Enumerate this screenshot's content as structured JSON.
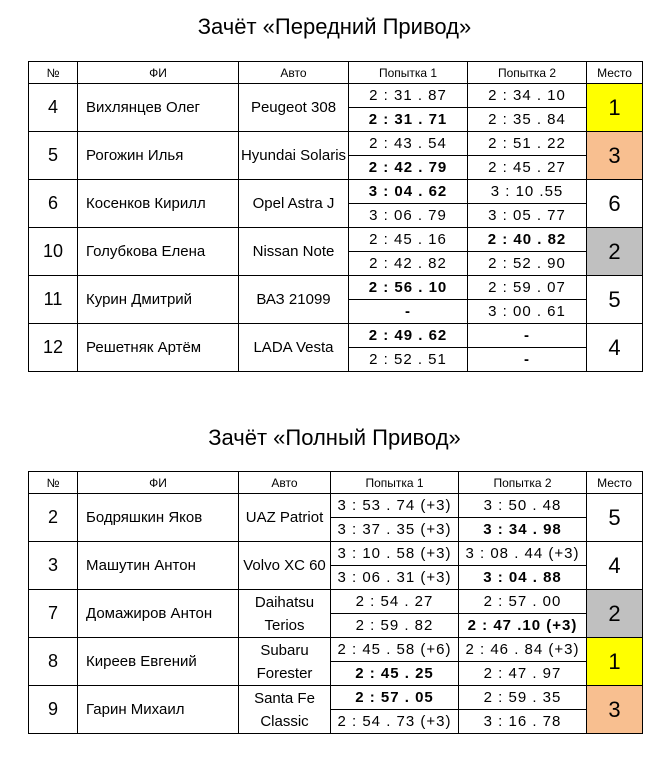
{
  "headers": {
    "num": "№",
    "name": "ФИ",
    "car": "Авто",
    "try1": "Попытка 1",
    "try2": "Попытка 2",
    "place": "Место"
  },
  "place_colors": {
    "1": "#ffff00",
    "2": "#c0c0c0",
    "3": "#f8bf90"
  },
  "tables": [
    {
      "title": "Зачёт «Передний Привод»",
      "rows": [
        {
          "num": "4",
          "name": "Вихлянцев Олег",
          "car": "Peugeot 308",
          "try1": [
            {
              "t": "2 : 31 . 87",
              "best": false
            },
            {
              "t": "2 : 31 . 71",
              "best": true
            }
          ],
          "try2": [
            {
              "t": "2 : 34 . 10",
              "best": false
            },
            {
              "t": "2 : 35 . 84",
              "best": false
            }
          ],
          "place": "1"
        },
        {
          "num": "5",
          "name": "Рогожин Илья",
          "car": "Hyundai Solaris",
          "try1": [
            {
              "t": "2 : 43 . 54",
              "best": false
            },
            {
              "t": "2 : 42 . 79",
              "best": true
            }
          ],
          "try2": [
            {
              "t": "2 : 51 . 22",
              "best": false
            },
            {
              "t": "2 : 45 . 27",
              "best": false
            }
          ],
          "place": "3"
        },
        {
          "num": "6",
          "name": "Косенков Кирилл",
          "car": "Opel Astra J",
          "try1": [
            {
              "t": "3 : 04 . 62",
              "best": true
            },
            {
              "t": "3 : 06 . 79",
              "best": false
            }
          ],
          "try2": [
            {
              "t": "3 : 10 .55",
              "best": false
            },
            {
              "t": "3 : 05 . 77",
              "best": false
            }
          ],
          "place": "6"
        },
        {
          "num": "10",
          "name": "Голубкова Елена",
          "car": "Nissan Note",
          "try1": [
            {
              "t": "2 : 45 . 16",
              "best": false
            },
            {
              "t": "2 : 42 . 82",
              "best": false
            }
          ],
          "try2": [
            {
              "t": "2 : 40 . 82",
              "best": true
            },
            {
              "t": "2 : 52 . 90",
              "best": false
            }
          ],
          "place": "2"
        },
        {
          "num": "11",
          "name": "Курин Дмитрий",
          "car": "ВАЗ 21099",
          "try1": [
            {
              "t": "2 : 56 . 10",
              "best": true
            },
            {
              "t": "-",
              "best": true
            }
          ],
          "try2": [
            {
              "t": "2 : 59 . 07",
              "best": false
            },
            {
              "t": "3 : 00 . 61",
              "best": false
            }
          ],
          "place": "5"
        },
        {
          "num": "12",
          "name": "Решетняк Артём",
          "car": "LADA Vesta",
          "try1": [
            {
              "t": "2 : 49 . 62",
              "best": true
            },
            {
              "t": "2 : 52 . 51",
              "best": false
            }
          ],
          "try2": [
            {
              "t": "-",
              "best": true
            },
            {
              "t": "-",
              "best": true
            }
          ],
          "place": "4"
        }
      ]
    },
    {
      "title": "Зачёт «Полный Привод»",
      "rows": [
        {
          "num": "2",
          "name": "Бодряшкин Яков",
          "car": "UAZ Patriot",
          "try1": [
            {
              "t": "3 : 53 . 74 (+3)",
              "best": false
            },
            {
              "t": "3 : 37 . 35 (+3)",
              "best": false
            }
          ],
          "try2": [
            {
              "t": "3 : 50 . 48",
              "best": false
            },
            {
              "t": "3 : 34 . 98",
              "best": true
            }
          ],
          "place": "5"
        },
        {
          "num": "3",
          "name": "Машутин Антон",
          "car": "Volvo XC 60",
          "try1": [
            {
              "t": "3 : 10 . 58 (+3)",
              "best": false
            },
            {
              "t": "3 : 06 . 31 (+3)",
              "best": false
            }
          ],
          "try2": [
            {
              "t": "3 : 08 . 44 (+3)",
              "best": false
            },
            {
              "t": "3 : 04 . 88",
              "best": true
            }
          ],
          "place": "4"
        },
        {
          "num": "7",
          "name": "Домажиров Антон",
          "car": "Daihatsu Terios",
          "try1": [
            {
              "t": "2 : 54 . 27",
              "best": false
            },
            {
              "t": "2 : 59 . 82",
              "best": false
            }
          ],
          "try2": [
            {
              "t": "2 : 57 . 00",
              "best": false
            },
            {
              "t": "2 : 47 .10 (+3)",
              "best": true
            }
          ],
          "place": "2"
        },
        {
          "num": "8",
          "name": "Киреев Евгений",
          "car": "Subaru Forester",
          "try1": [
            {
              "t": "2 : 45 . 58 (+6)",
              "best": false
            },
            {
              "t": "2 : 45 . 25",
              "best": true
            }
          ],
          "try2": [
            {
              "t": "2 : 46 . 84 (+3)",
              "best": false
            },
            {
              "t": "2 : 47 . 97",
              "best": false
            }
          ],
          "place": "1"
        },
        {
          "num": "9",
          "name": "Гарин Михаил",
          "car": "Santa Fe Classic",
          "try1": [
            {
              "t": "2 : 57 . 05",
              "best": true
            },
            {
              "t": "2 : 54 . 73 (+3)",
              "best": false
            }
          ],
          "try2": [
            {
              "t": "2 : 59 . 35",
              "best": false
            },
            {
              "t": "3 : 16 . 78",
              "best": false
            }
          ],
          "place": "3"
        }
      ]
    }
  ]
}
